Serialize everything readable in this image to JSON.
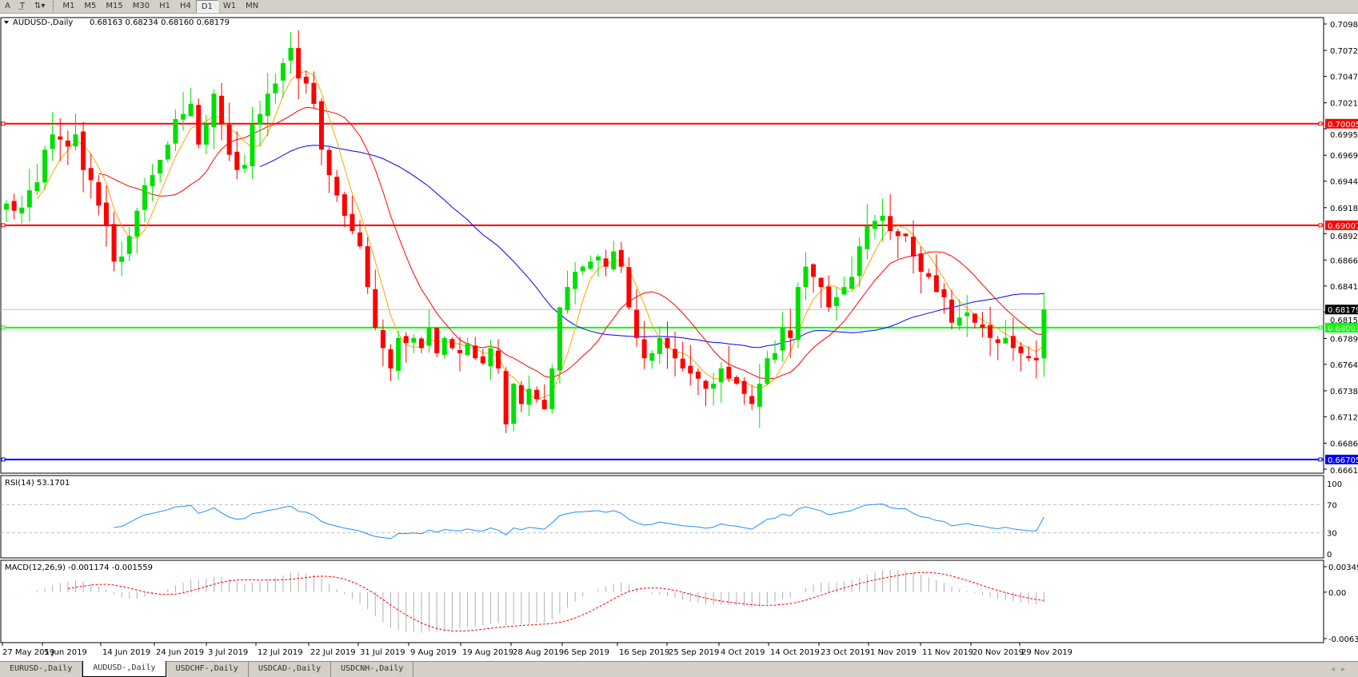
{
  "toolbar": {
    "text_tool": "A",
    "textlabel_tool": "T",
    "arrows_tool": "⇅▾",
    "periods": [
      "M1",
      "M5",
      "M15",
      "M30",
      "H1",
      "H4",
      "D1",
      "W1",
      "MN"
    ],
    "active_period": "D1"
  },
  "main": {
    "symbol_label": "AUDUSD-,Daily",
    "ohlc": "0.68163 0.68234 0.68160 0.68179",
    "price_ticks": [
      "0.70985",
      "0.70725",
      "0.70470",
      "0.70210",
      "0.69955",
      "0.69695",
      "0.69440",
      "0.69180",
      "0.68925",
      "0.68665",
      "0.68410",
      "0.68155",
      "0.67895",
      "0.67640",
      "0.67380",
      "0.67125",
      "0.66865",
      "0.66610"
    ],
    "price_min": 0.6661,
    "price_max": 0.70985,
    "levels": [
      {
        "price": "0.70005",
        "color": "#ff0000"
      },
      {
        "price": "0.69007",
        "color": "#ff0000"
      },
      {
        "price": "0.68001",
        "color": "#00ff00"
      },
      {
        "price": "0.66705",
        "color": "#0000ff"
      }
    ],
    "current_price": "0.68179",
    "colors": {
      "bull": "#00e000",
      "bear": "#ff0000",
      "ma_fast": "#ffa500",
      "ma_mid": "#ff0000",
      "ma_slow": "#0000ff"
    }
  },
  "chart_data": {
    "type": "candlestick",
    "closes": [
      0.6922,
      0.6915,
      0.6918,
      0.6935,
      0.6943,
      0.6975,
      0.699,
      0.6985,
      0.6978,
      0.699,
      0.6955,
      0.6945,
      0.692,
      0.69,
      0.6865,
      0.687,
      0.689,
      0.6915,
      0.694,
      0.695,
      0.6965,
      0.698,
      0.7005,
      0.701,
      0.702,
      0.698,
      0.7,
      0.703,
      0.7,
      0.697,
      0.6955,
      0.696,
      0.7,
      0.701,
      0.703,
      0.704,
      0.706,
      0.7075,
      0.7045,
      0.704,
      0.702,
      0.6975,
      0.695,
      0.693,
      0.691,
      0.6895,
      0.688,
      0.684,
      0.68,
      0.678,
      0.676,
      0.679,
      0.6785,
      0.679,
      0.678,
      0.68,
      0.6775,
      0.679,
      0.678,
      0.6775,
      0.6785,
      0.677,
      0.6765,
      0.678,
      0.676,
      0.6705,
      0.6745,
      0.6725,
      0.674,
      0.673,
      0.672,
      0.676,
      0.682,
      0.684,
      0.6855,
      0.686,
      0.6865,
      0.687,
      0.686,
      0.6875,
      0.686,
      0.682,
      0.679,
      0.677,
      0.6775,
      0.679,
      0.678,
      0.677,
      0.676,
      0.6755,
      0.675,
      0.674,
      0.6745,
      0.676,
      0.675,
      0.6745,
      0.6735,
      0.6725,
      0.6745,
      0.677,
      0.6775,
      0.68,
      0.679,
      0.684,
      0.686,
      0.685,
      0.684,
      0.682,
      0.683,
      0.684,
      0.685,
      0.688,
      0.69,
      0.6905,
      0.691,
      0.6895,
      0.689,
      0.689,
      0.687,
      0.6855,
      0.685,
      0.6835,
      0.683,
      0.6805,
      0.681,
      0.6815,
      0.6805,
      0.68,
      0.679,
      0.6785,
      0.679,
      0.678,
      0.6775,
      0.677,
      0.6768,
      0.6818
    ],
    "date_labels": [
      "27 May 2019",
      "5 Jun 2019",
      "14 Jun 2019",
      "24 Jun 2019",
      "3 Jul 2019",
      "12 Jul 2019",
      "22 Jul 2019",
      "31 Jul 2019",
      "9 Aug 2019",
      "19 Aug 2019",
      "28 Aug 2019",
      "6 Sep 2019",
      "16 Sep 2019",
      "25 Sep 2019",
      "4 Oct 2019",
      "14 Oct 2019",
      "23 Oct 2019",
      "1 Nov 2019",
      "11 Nov 2019",
      "20 Nov 2019",
      "29 Nov 2019"
    ]
  },
  "rsi": {
    "label": "RSI(14) 53.1701",
    "ticks": [
      "100",
      "70",
      "30",
      "0"
    ],
    "color": "#1e90ff"
  },
  "macd": {
    "label": "MACD(12,26,9) -0.001174 -0.001559",
    "ticks": [
      "0.00349",
      "0.00",
      "-0.00637"
    ],
    "max": 0.00349,
    "min": -0.00637
  },
  "tabs": [
    "EURUSD-,Daily",
    "AUDUSD-,Daily",
    "USDCHF-,Daily",
    "USDCAD-,Daily",
    "USDCNH-,Daily"
  ],
  "active_tab": "AUDUSD-,Daily"
}
